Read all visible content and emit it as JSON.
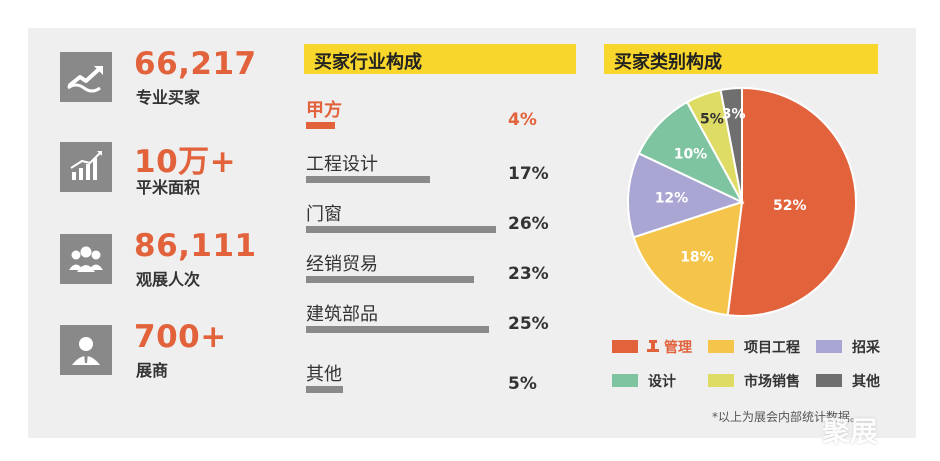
{
  "stats": [
    {
      "value": "66,217",
      "label": "专业买家",
      "icon": "handshake-growth-icon"
    },
    {
      "value": "10万+",
      "label": "平米面积",
      "icon": "area-chart-icon"
    },
    {
      "value": "86,111",
      "label": "观展人次",
      "icon": "visitors-icon"
    },
    {
      "value": "700+",
      "label": "展商",
      "icon": "exhibitor-icon"
    }
  ],
  "industry": {
    "title": "买家行业构成",
    "highlight_color": "#e2623b",
    "rows": [
      {
        "name": "甲方",
        "pct_label": "4%",
        "value": 4,
        "highlight": true
      },
      {
        "name": "工程设计",
        "pct_label": "17%",
        "value": 17,
        "highlight": false
      },
      {
        "name": "门窗",
        "pct_label": "26%",
        "value": 26,
        "highlight": false
      },
      {
        "name": "经销贸易",
        "pct_label": "23%",
        "value": 23,
        "highlight": false
      },
      {
        "name": "建筑部品",
        "pct_label": "25%",
        "value": 25,
        "highlight": false
      },
      {
        "name": "其他",
        "pct_label": "5%",
        "value": 5,
        "highlight": false
      }
    ]
  },
  "category": {
    "title": "买家类别构成"
  },
  "chart_data": [
    {
      "type": "bar",
      "orientation": "horizontal",
      "title": "买家行业构成",
      "categories": [
        "甲方",
        "工程设计",
        "门窗",
        "经销贸易",
        "建筑部品",
        "其他"
      ],
      "values": [
        4,
        17,
        26,
        23,
        25,
        5
      ],
      "unit": "%"
    },
    {
      "type": "pie",
      "title": "买家类别构成",
      "labels": [
        "管理",
        "项目工程",
        "招采",
        "设计",
        "市场销售",
        "其他"
      ],
      "values": [
        52,
        18,
        12,
        10,
        5,
        3
      ],
      "value_labels": [
        "52%",
        "18%",
        "12%",
        "10%",
        "5%",
        "3%"
      ],
      "colors": [
        "#e2623b",
        "#f5c44a",
        "#a9a6d3",
        "#7fc4a0",
        "#dfdc66",
        "#6f6f6f"
      ],
      "legend_position": "bottom"
    }
  ],
  "legend": [
    {
      "label": "管理",
      "color": "#e2623b",
      "icon": "manager-icon"
    },
    {
      "label": "项目工程",
      "color": "#f5c44a"
    },
    {
      "label": "招采",
      "color": "#a9a6d3"
    },
    {
      "label": "设计",
      "color": "#7fc4a0"
    },
    {
      "label": "市场销售",
      "color": "#dfdc66"
    },
    {
      "label": "其他",
      "color": "#6f6f6f"
    }
  ],
  "footnote": "*以上为展会内部统计数据。",
  "watermark": "聚展"
}
